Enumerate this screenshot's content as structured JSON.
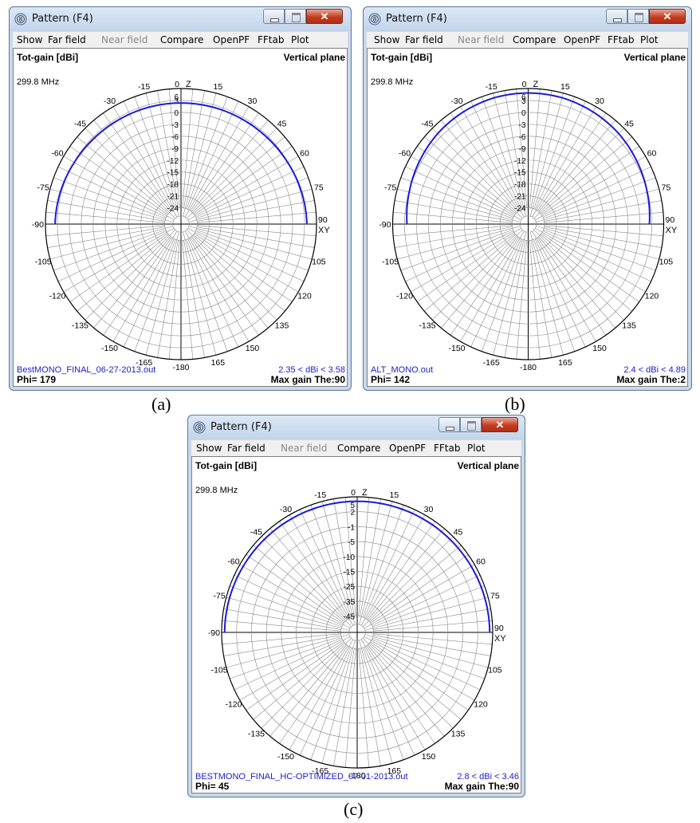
{
  "windows": [
    {
      "id": "a",
      "title": "Pattern   (F4)",
      "menu": [
        "Show",
        "Far field",
        "Near field",
        "Compare",
        "OpenPF",
        "FFtab",
        "Plot"
      ],
      "gain_label": "Tot-gain [dBi]",
      "plane_label": "Vertical plane",
      "frequency": "299.8 MHz",
      "filename": "BestMONO_FINAL_06-27-2013.out",
      "gain_range": "2.35 < dBi < 3.58",
      "phi": "Phi= 179",
      "max_gain": "Max gain The:90",
      "ring_labels": [
        "6",
        "3",
        "0",
        "-3",
        "-6",
        "-9",
        "-12",
        "-15",
        "-18",
        "-21",
        "-24"
      ],
      "angle_labels": [
        "0",
        "15",
        "30",
        "45",
        "60",
        "75",
        "90",
        "105",
        "120",
        "135",
        "150",
        "165",
        "-180",
        "-165",
        "-150",
        "-135",
        "-120",
        "-105",
        "-90",
        "-75",
        "-60",
        "-45",
        "-30",
        "-15"
      ],
      "axis_labels": {
        "z": "Z",
        "xy": "XY"
      },
      "chart_data": {
        "type": "line",
        "polar": true,
        "series": [
          {
            "theta_deg": [
              -90,
              -75,
              -60,
              -45,
              -30,
              -15,
              0,
              15,
              30,
              45,
              60,
              75,
              90
            ],
            "gain_dbi": [
              3.58,
              3.3,
              2.9,
              2.6,
              2.45,
              2.38,
              2.35,
              2.38,
              2.45,
              2.6,
              2.9,
              3.3,
              3.58
            ]
          }
        ],
        "rlim": [
          -24,
          6
        ]
      }
    },
    {
      "id": "b",
      "title": "Pattern   (F4)",
      "menu": [
        "Show",
        "Far field",
        "Near field",
        "Compare",
        "OpenPF",
        "FFtab",
        "Plot"
      ],
      "gain_label": "Tot-gain [dBi]",
      "plane_label": "Vertical plane",
      "frequency": "299.8 MHz",
      "filename": "ALT_MONO.out",
      "gain_range": "2.4 < dBi < 4.89",
      "phi": "Phi= 142",
      "max_gain": "Max gain The:2",
      "ring_labels": [
        "6",
        "3",
        "0",
        "-3",
        "-6",
        "-9",
        "-12",
        "-15",
        "-18",
        "-21",
        "-24"
      ],
      "angle_labels": [
        "0",
        "15",
        "30",
        "45",
        "60",
        "75",
        "90",
        "105",
        "120",
        "135",
        "150",
        "165",
        "-180",
        "-165",
        "-150",
        "-135",
        "-120",
        "-105",
        "-90",
        "-75",
        "-60",
        "-45",
        "-30",
        "-15"
      ],
      "axis_labels": {
        "z": "Z",
        "xy": "XY"
      },
      "chart_data": {
        "type": "line",
        "polar": true,
        "series": [
          {
            "theta_deg": [
              -90,
              -75,
              -60,
              -45,
              -30,
              -15,
              0,
              15,
              30,
              45,
              60,
              75,
              90
            ],
            "gain_dbi": [
              2.4,
              2.9,
              3.5,
              4.1,
              4.5,
              4.8,
              4.89,
              4.8,
              4.5,
              4.1,
              3.5,
              2.9,
              2.4
            ]
          }
        ],
        "rlim": [
          -24,
          6
        ]
      }
    },
    {
      "id": "c",
      "title": "Pattern   (F4)",
      "menu": [
        "Show",
        "Far field",
        "Near field",
        "Compare",
        "OpenPF",
        "FFtab",
        "Plot"
      ],
      "gain_label": "Tot-gain [dBi]",
      "plane_label": "Vertical plane",
      "frequency": "299.8 MHz",
      "filename": "BESTMONO_FINAL_HC-OPTIMIZED_07-01-2013.out",
      "gain_range": "2.8 < dBi < 3.46",
      "phi": "Phi= 45",
      "max_gain": "Max gain The:90",
      "ring_labels": [
        "5",
        "2",
        "-1",
        "-5",
        "-10",
        "-15",
        "-25",
        "-35",
        "-45"
      ],
      "angle_labels": [
        "0",
        "15",
        "30",
        "45",
        "60",
        "75",
        "90",
        "105",
        "120",
        "135",
        "150",
        "165",
        "-180",
        "-165",
        "-150",
        "-135",
        "-120",
        "-105",
        "-90",
        "-75",
        "-60",
        "-45",
        "-30",
        "-15"
      ],
      "axis_labels": {
        "z": "Z",
        "xy": "XY"
      },
      "chart_data": {
        "type": "line",
        "polar": true,
        "series": [
          {
            "theta_deg": [
              -90,
              -75,
              -60,
              -45,
              -30,
              -15,
              0,
              15,
              30,
              45,
              60,
              75,
              90
            ],
            "gain_dbi": [
              3.46,
              3.3,
              3.1,
              2.95,
              2.85,
              2.81,
              2.8,
              2.81,
              2.85,
              2.95,
              3.1,
              3.3,
              3.46
            ]
          }
        ],
        "rlim": [
          -45,
          5
        ]
      }
    }
  ],
  "captions": [
    "(a)",
    "(b)",
    "(c)"
  ],
  "colors": {
    "pattern": "#1a1adc",
    "blue_text": "#1c1cc8",
    "grid": "#888888"
  }
}
